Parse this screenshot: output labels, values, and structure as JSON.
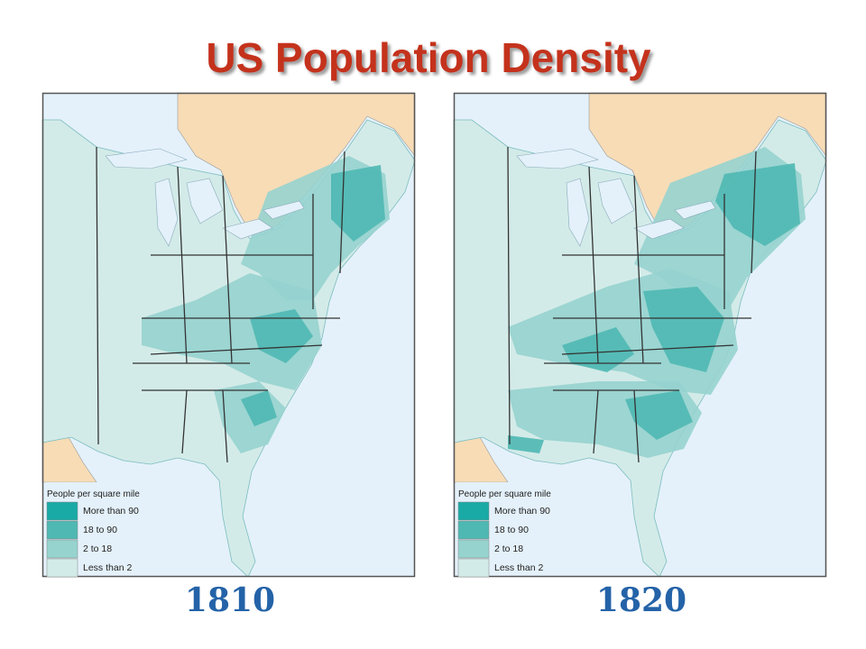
{
  "header": {
    "title": "US Population Density"
  },
  "maps": [
    {
      "year": "1810",
      "legend_title": "People per square mile",
      "legend": [
        {
          "label": "More than 90",
          "color": "#19aaa6"
        },
        {
          "label": "18 to 90",
          "color": "#4fb8b2"
        },
        {
          "label": "2 to 18",
          "color": "#96d3cf"
        },
        {
          "label": "Less than 2",
          "color": "#d3ebe8"
        }
      ]
    },
    {
      "year": "1820",
      "legend_title": "People per square mile",
      "legend": [
        {
          "label": "More than 90",
          "color": "#19aaa6"
        },
        {
          "label": "18 to 90",
          "color": "#4fb8b2"
        },
        {
          "label": "2 to 18",
          "color": "#96d3cf"
        },
        {
          "label": "Less than 2",
          "color": "#d3ebe8"
        }
      ]
    }
  ]
}
